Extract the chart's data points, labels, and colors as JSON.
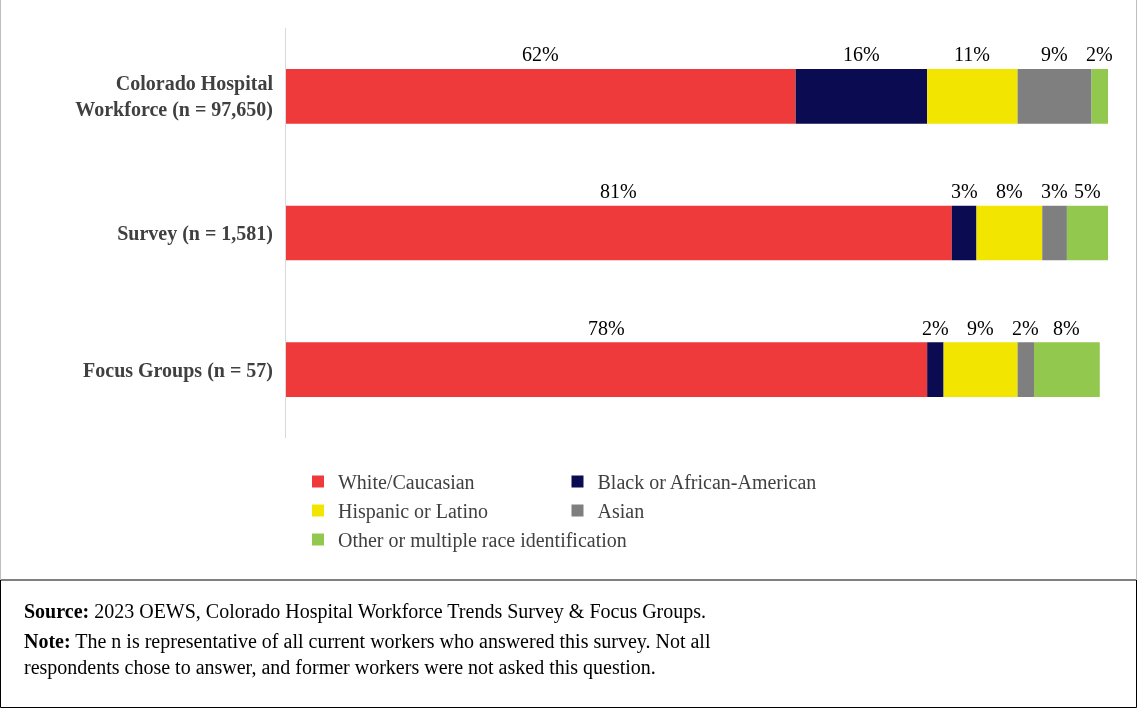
{
  "chart_data": {
    "type": "bar",
    "orientation": "horizontal",
    "stacked": true,
    "categories": [
      "Colorado Hospital Workforce (n = 97,650)",
      "Survey (n = 1,581)",
      "Focus Groups (n = 57)"
    ],
    "series": [
      {
        "name": "White/Caucasian",
        "color": "#ee3a3a",
        "values": [
          62,
          81,
          78
        ],
        "value_labels": [
          "62%",
          "81%",
          "78%"
        ]
      },
      {
        "name": "Black or African-American",
        "color": "#0b0b52",
        "values": [
          16,
          3,
          2
        ],
        "value_labels": [
          "16%",
          "3%",
          "2%"
        ]
      },
      {
        "name": "Hispanic or Latino",
        "color": "#f2e600",
        "values": [
          11,
          8,
          9
        ],
        "value_labels": [
          "11%",
          "8%",
          "9%"
        ]
      },
      {
        "name": "Asian",
        "color": "#7f7f7f",
        "values": [
          9,
          3,
          2
        ],
        "value_labels": [
          "9%",
          "3%",
          "2%"
        ]
      },
      {
        "name": "Other or multiple race identification",
        "color": "#92c84e",
        "values": [
          2,
          5,
          8
        ],
        "value_labels": [
          "2%",
          "5%",
          "8%"
        ]
      }
    ],
    "legend": "bottom",
    "annotations": [
      "Source: 2023 OEWS, Colorado Hospital Workforce Trends Survey & Focus Groups.",
      "Note: The n is representative of all current workers who answered this survey. Not all respondents chose to answer, and former workers were not asked this question."
    ]
  }
}
